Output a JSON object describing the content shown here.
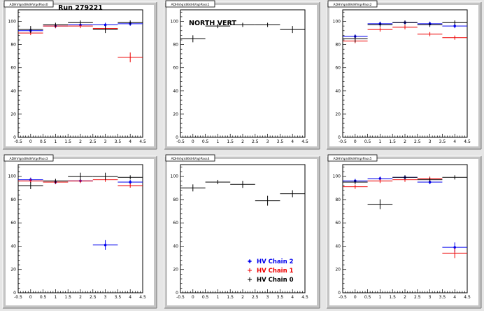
{
  "canvas": {
    "run_label": "Run 279221",
    "pad_titles": [
      "ADHV(φ)dlθdHV(φ)Pass0",
      "ADHV(φ)dlθdHV(φ)Pass1",
      "ADHV(φ)dlθdHV(φ)Pass2",
      "ADHV(φ)dlθdHV(φ)Pass3",
      "ADHV(φ)dlθdHV(φ)Pass4",
      "ADHV(φ)dlθdHV(φ)Pass5"
    ],
    "annotation": "NORTH VERT"
  },
  "colors": {
    "chain2": "#0000ee",
    "chain1": "#ee0000",
    "chain0": "#000000",
    "pad_fill": "#ffffff",
    "canvas_bg": "#e6e6e6",
    "pad_frame": "#c4c4c4"
  },
  "legend": {
    "placement": "bottom-right of lower-middle pad",
    "entries": [
      {
        "key": "chain2",
        "label": "HV Chain 2"
      },
      {
        "key": "chain1",
        "label": "HV Chain 1"
      },
      {
        "key": "chain0",
        "label": "HV Chain 0"
      }
    ]
  },
  "chart_data": [
    {
      "type": "scatter",
      "xlim": [
        -0.5,
        4.5
      ],
      "ylim": [
        0,
        110
      ],
      "xticks": [
        "-0.5",
        "0",
        "0.5",
        "1",
        "1.5",
        "2",
        "2.5",
        "3",
        "3.5",
        "4",
        "4.5"
      ],
      "yticks": [
        "0",
        "20",
        "40",
        "60",
        "80",
        "100"
      ],
      "series": [
        {
          "key": "chain2",
          "name": "HV Chain 2",
          "x": [
            0,
            1,
            2,
            3,
            4
          ],
          "y": [
            92,
            96,
            97,
            97,
            98
          ],
          "xerr": 0.5
        },
        {
          "key": "chain1",
          "name": "HV Chain 1",
          "x": [
            0,
            1,
            2,
            3,
            4
          ],
          "y": [
            90,
            96,
            96,
            94,
            69
          ],
          "xerr": 0.5
        },
        {
          "key": "chain0",
          "name": "HV Chain 0",
          "x": [
            0,
            1,
            2,
            3,
            4
          ],
          "y": [
            93,
            97,
            99,
            93,
            99
          ],
          "xerr": 0.5
        }
      ]
    },
    {
      "type": "scatter",
      "xlim": [
        -0.5,
        4.5
      ],
      "ylim": [
        0,
        110
      ],
      "xticks": [
        "-0.5",
        "0",
        "0.5",
        "1",
        "1.5",
        "2",
        "2.5",
        "3",
        "3.5",
        "4",
        "4.5"
      ],
      "yticks": [
        "0",
        "20",
        "40",
        "60",
        "80",
        "100"
      ],
      "series": [
        {
          "key": "chain0",
          "name": "HV Chain 0",
          "x": [
            0,
            1,
            2,
            3,
            4
          ],
          "y": [
            85,
            96,
            97,
            97,
            93
          ],
          "xerr": 0.5
        }
      ]
    },
    {
      "type": "scatter",
      "xlim": [
        -0.5,
        4.5
      ],
      "ylim": [
        0,
        110
      ],
      "xticks": [
        "-0.5",
        "0",
        "0.5",
        "1",
        "1.5",
        "2",
        "2.5",
        "3",
        "3.5",
        "4",
        "4.5"
      ],
      "yticks": [
        "0",
        "20",
        "40",
        "60",
        "80",
        "100"
      ],
      "series": [
        {
          "key": "chain2",
          "name": "HV Chain 2",
          "x": [
            0,
            1,
            2,
            3,
            4
          ],
          "y": [
            87,
            98,
            99,
            98,
            96
          ],
          "xerr": 0.5
        },
        {
          "key": "chain1",
          "name": "HV Chain 1",
          "x": [
            0,
            1,
            2,
            3,
            4
          ],
          "y": [
            83,
            93,
            95,
            89,
            86
          ],
          "xerr": 0.5
        },
        {
          "key": "chain0",
          "name": "HV Chain 0",
          "x": [
            0,
            1,
            2,
            3,
            4
          ],
          "y": [
            85,
            97,
            99,
            97,
            99
          ],
          "xerr": 0.5
        }
      ]
    },
    {
      "type": "scatter",
      "xlim": [
        -0.5,
        4.5
      ],
      "ylim": [
        0,
        110
      ],
      "xticks": [
        "-0.5",
        "0",
        "0.5",
        "1",
        "1.5",
        "2",
        "2.5",
        "3",
        "3.5",
        "4",
        "4.5"
      ],
      "yticks": [
        "0",
        "20",
        "40",
        "60",
        "80",
        "100"
      ],
      "series": [
        {
          "key": "chain2",
          "name": "HV Chain 2",
          "x": [
            0,
            1,
            2,
            3,
            4
          ],
          "y": [
            97,
            95,
            96,
            41,
            95
          ],
          "xerr": 0.5
        },
        {
          "key": "chain1",
          "name": "HV Chain 1",
          "x": [
            0,
            1,
            2,
            3,
            4
          ],
          "y": [
            96,
            95,
            96,
            97,
            92
          ],
          "xerr": 0.5
        },
        {
          "key": "chain0",
          "name": "HV Chain 0",
          "x": [
            0,
            1,
            2,
            3,
            4
          ],
          "y": [
            92,
            96,
            100,
            100,
            99
          ],
          "xerr": 0.5
        }
      ]
    },
    {
      "type": "scatter",
      "xlim": [
        -0.5,
        4.5
      ],
      "ylim": [
        0,
        110
      ],
      "xticks": [
        "-0.5",
        "0",
        "0.5",
        "1",
        "1.5",
        "2",
        "2.5",
        "3",
        "3.5",
        "4",
        "4.5"
      ],
      "yticks": [
        "0",
        "20",
        "40",
        "60",
        "80",
        "100"
      ],
      "series": [
        {
          "key": "chain0",
          "name": "HV Chain 0",
          "x": [
            0,
            1,
            2,
            3,
            4
          ],
          "y": [
            90,
            95,
            93,
            79,
            85
          ],
          "xerr": 0.5
        }
      ]
    },
    {
      "type": "scatter",
      "xlim": [
        -0.5,
        4.5
      ],
      "ylim": [
        0,
        110
      ],
      "xticks": [
        "-0.5",
        "0",
        "0.5",
        "1",
        "1.5",
        "2",
        "2.5",
        "3",
        "3.5",
        "4",
        "4.5"
      ],
      "yticks": [
        "0",
        "20",
        "40",
        "60",
        "80",
        "100"
      ],
      "series": [
        {
          "key": "chain2",
          "name": "HV Chain 2",
          "x": [
            0,
            1,
            2,
            3,
            4
          ],
          "y": [
            96,
            98,
            99,
            95,
            39
          ],
          "xerr": 0.5
        },
        {
          "key": "chain1",
          "name": "HV Chain 1",
          "x": [
            0,
            1,
            2,
            3,
            4
          ],
          "y": [
            91,
            96,
            97,
            98,
            34
          ],
          "xerr": 0.5
        },
        {
          "key": "chain0",
          "name": "HV Chain 0",
          "x": [
            0,
            1,
            2,
            3,
            4
          ],
          "y": [
            95,
            76,
            99,
            97,
            99
          ],
          "xerr": 0.5
        }
      ]
    }
  ]
}
